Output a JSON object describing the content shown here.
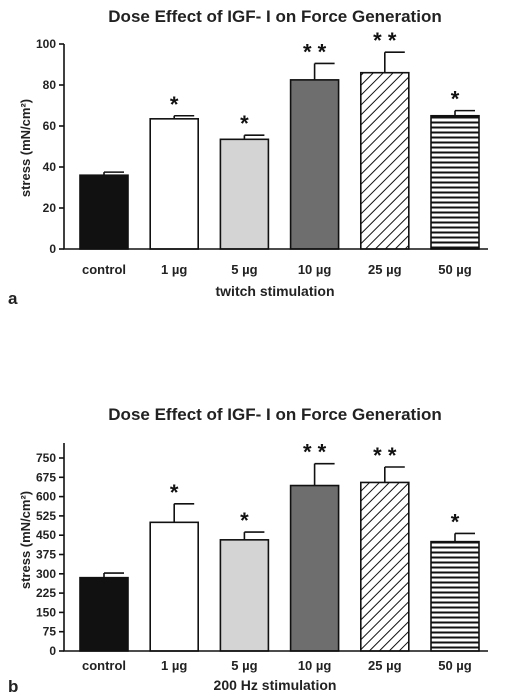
{
  "chart_data": [
    {
      "type": "bar",
      "panel_label": "a",
      "title": "Dose Effect of IGF- I on Force Generation",
      "xlabel": "twitch stimulation",
      "ylabel": "stress (mN/cm²)",
      "ylim": [
        0,
        100
      ],
      "yticks": [
        "0",
        "20",
        "40",
        "60",
        "80",
        "100"
      ],
      "categories": [
        "control",
        "1 µg",
        "5 µg",
        "10 µg",
        "25 µg",
        "50 µg"
      ],
      "values": [
        36,
        63.5,
        53.5,
        82.5,
        86,
        65
      ],
      "errors": [
        1.5,
        1.5,
        2,
        8,
        10,
        2.5
      ],
      "significance": [
        "",
        "*",
        "*",
        "* *",
        "* *",
        "*"
      ],
      "fills": [
        "black",
        "white",
        "light-gray",
        "dark-gray",
        "diagonal-hatch",
        "horizontal-lines"
      ],
      "grid": false
    },
    {
      "type": "bar",
      "panel_label": "b",
      "title": "Dose Effect of IGF- I on Force Generation",
      "xlabel": "200 Hz stimulation",
      "ylabel": "stress (mN/cm²)",
      "ylim": [
        0,
        750
      ],
      "yticks": [
        "0",
        "75",
        "150",
        "225",
        "300",
        "375",
        "450",
        "525",
        "600",
        "675",
        "750"
      ],
      "categories": [
        "control",
        "1 µg",
        "5 µg",
        "10 µg",
        "25 µg",
        "50 µg"
      ],
      "values": [
        285,
        500,
        432,
        643,
        655,
        425
      ],
      "errors": [
        18,
        72,
        30,
        85,
        60,
        32
      ],
      "significance": [
        "",
        "*",
        "*",
        "* *",
        "* *",
        "*"
      ],
      "fills": [
        "black",
        "white",
        "light-gray",
        "dark-gray",
        "diagonal-hatch",
        "horizontal-lines"
      ],
      "grid": false
    }
  ],
  "colors": {
    "black": "#111111",
    "white": "#ffffff",
    "light-gray": "#d4d4d4",
    "dark-gray": "#6e6e6e",
    "ink": "#111111"
  }
}
